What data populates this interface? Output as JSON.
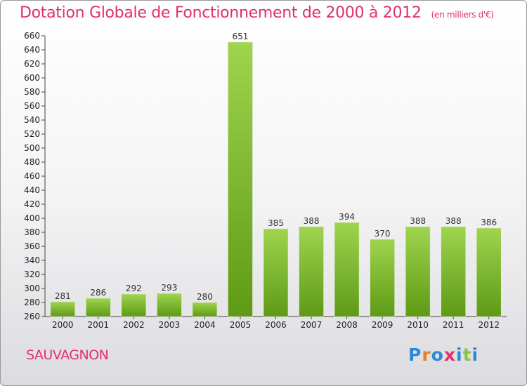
{
  "title": "Dotation Globale de Fonctionnement de 2000 à 2012",
  "unit": "(en milliers d'€)",
  "city": "SAUVAGNON",
  "logo": {
    "letters": [
      "P",
      "r",
      "o",
      "x",
      "i",
      "t",
      "i"
    ],
    "colors": [
      "#2a8ad8",
      "#e67e22",
      "#2a8ad8",
      "#e0306e",
      "#2a8ad8",
      "#8bc34a",
      "#2a8ad8"
    ]
  },
  "colors": {
    "bar_top": "#9fd44e",
    "bar_bottom": "#5e9a16",
    "title": "#e0306e"
  },
  "chart_data": {
    "type": "bar",
    "title": "Dotation Globale de Fonctionnement de 2000 à 2012",
    "subtitle": "(en milliers d'€)",
    "categories": [
      "2000",
      "2001",
      "2002",
      "2003",
      "2004",
      "2005",
      "2006",
      "2007",
      "2008",
      "2009",
      "2010",
      "2011",
      "2012"
    ],
    "values": [
      281,
      286,
      292,
      293,
      280,
      651,
      385,
      388,
      394,
      370,
      388,
      388,
      386
    ],
    "ylim": [
      260,
      660
    ],
    "ytick_step": 20,
    "grid": false,
    "data_labels": true
  }
}
